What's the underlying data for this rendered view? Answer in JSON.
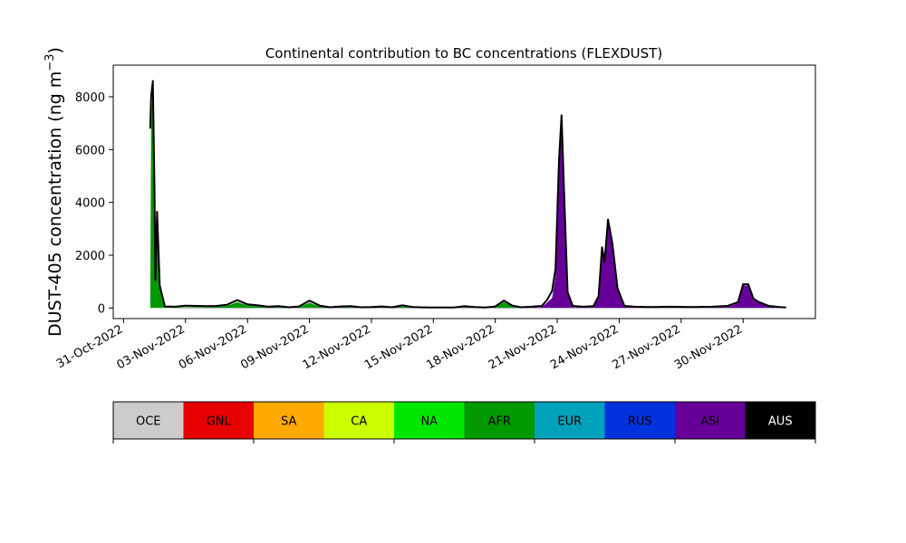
{
  "chart_data": {
    "type": "area",
    "title": "Continental contribution to BC concentrations (FLEXDUST)",
    "ylabel_main": "DUST-405 concentration (ng m",
    "ylabel_sup": "−3",
    "ylabel_end": ")",
    "ylim": [
      -400,
      9200
    ],
    "yticks": [
      0,
      2000,
      4000,
      6000,
      8000
    ],
    "xlim": [
      "2022-10-30T12:00",
      "2022-12-03T12:00"
    ],
    "xticks": [
      "31-Oct-2022",
      "03-Nov-2022",
      "06-Nov-2022",
      "09-Nov-2022",
      "12-Nov-2022",
      "15-Nov-2022",
      "18-Nov-2022",
      "21-Nov-2022",
      "24-Nov-2022",
      "27-Nov-2022",
      "30-Nov-2022"
    ],
    "xtick_dates": [
      "2022-10-31",
      "2022-11-03",
      "2022-11-06",
      "2022-11-09",
      "2022-11-12",
      "2022-11-15",
      "2022-11-18",
      "2022-11-21",
      "2022-11-24",
      "2022-11-27",
      "2022-11-30"
    ],
    "grid": false,
    "series": [
      {
        "name": "AFR",
        "color": "#009900",
        "points": [
          [
            "2022-11-01T07:00",
            0
          ],
          [
            "2022-11-01T08:00",
            6900
          ],
          [
            "2022-11-01T10:00",
            8500
          ],
          [
            "2022-11-01T12:00",
            4200
          ],
          [
            "2022-11-01T13:00",
            1050
          ],
          [
            "2022-11-01T15:00",
            3600
          ],
          [
            "2022-11-01T18:00",
            800
          ],
          [
            "2022-11-02T00:00",
            40
          ],
          [
            "2022-11-02T12:00",
            25
          ],
          [
            "2022-11-03T00:00",
            30
          ],
          [
            "2022-11-03T12:00",
            40
          ],
          [
            "2022-11-04T00:00",
            30
          ],
          [
            "2022-11-04T12:00",
            60
          ],
          [
            "2022-11-05T00:00",
            80
          ],
          [
            "2022-11-05T12:00",
            220
          ],
          [
            "2022-11-06T00:00",
            100
          ],
          [
            "2022-11-06T12:00",
            70
          ],
          [
            "2022-11-07T00:00",
            30
          ],
          [
            "2022-11-07T12:00",
            40
          ],
          [
            "2022-11-08T00:00",
            20
          ],
          [
            "2022-11-08T12:00",
            30
          ],
          [
            "2022-11-09T00:00",
            200
          ],
          [
            "2022-11-09T12:00",
            60
          ],
          [
            "2022-11-10T00:00",
            20
          ],
          [
            "2022-11-10T12:00",
            30
          ],
          [
            "2022-11-11T00:00",
            40
          ],
          [
            "2022-11-11T12:00",
            15
          ],
          [
            "2022-11-12T00:00",
            20
          ],
          [
            "2022-11-12T12:00",
            30
          ],
          [
            "2022-11-13T00:00",
            15
          ],
          [
            "2022-11-13T12:00",
            60
          ],
          [
            "2022-11-14T00:00",
            20
          ],
          [
            "2022-11-14T12:00",
            15
          ],
          [
            "2022-11-15T00:00",
            10
          ],
          [
            "2022-11-15T12:00",
            10
          ],
          [
            "2022-11-16T00:00",
            10
          ],
          [
            "2022-11-16T12:00",
            40
          ],
          [
            "2022-11-17T00:00",
            20
          ],
          [
            "2022-11-17T12:00",
            10
          ],
          [
            "2022-11-18T00:00",
            40
          ],
          [
            "2022-11-18T10:00",
            220
          ],
          [
            "2022-11-18T20:00",
            60
          ],
          [
            "2022-11-19T06:00",
            20
          ],
          [
            "2022-11-19T18:00",
            30
          ],
          [
            "2022-11-20T06:00",
            40
          ],
          [
            "2022-11-20T18:00",
            80
          ],
          [
            "2022-11-21T12:00",
            30
          ],
          [
            "2022-11-22T00:00",
            20
          ],
          [
            "2022-11-22T12:00",
            30
          ],
          [
            "2022-11-23T00:00",
            15
          ],
          [
            "2022-11-23T12:00",
            20
          ],
          [
            "2022-11-24T00:00",
            10
          ],
          [
            "2022-11-24T12:00",
            15
          ],
          [
            "2022-11-25T00:00",
            10
          ],
          [
            "2022-11-25T12:00",
            20
          ],
          [
            "2022-11-26T00:00",
            10
          ],
          [
            "2022-11-26T12:00",
            30
          ],
          [
            "2022-11-27T00:00",
            20
          ],
          [
            "2022-11-27T12:00",
            20
          ],
          [
            "2022-11-28T00:00",
            10
          ],
          [
            "2022-11-28T12:00",
            15
          ],
          [
            "2022-11-29T00:00",
            40
          ],
          [
            "2022-11-29T12:00",
            60
          ],
          [
            "2022-11-30T00:00",
            30
          ],
          [
            "2022-11-30T12:00",
            20
          ],
          [
            "2022-12-01T00:00",
            15
          ],
          [
            "2022-12-01T12:00",
            10
          ],
          [
            "2022-12-02T00:00",
            5
          ],
          [
            "2022-12-02T02:00",
            0
          ]
        ]
      },
      {
        "name": "ASI",
        "color": "#660099",
        "points": [
          [
            "2022-11-01T07:00",
            0
          ],
          [
            "2022-11-02T00:00",
            0
          ],
          [
            "2022-11-03T00:00",
            10
          ],
          [
            "2022-11-05T00:00",
            10
          ],
          [
            "2022-11-17T00:00",
            10
          ],
          [
            "2022-11-19T12:00",
            10
          ],
          [
            "2022-11-20T06:00",
            40
          ],
          [
            "2022-11-20T12:00",
            200
          ],
          [
            "2022-11-20T18:00",
            380
          ],
          [
            "2022-11-20T22:00",
            1200
          ],
          [
            "2022-11-21T02:00",
            5400
          ],
          [
            "2022-11-21T05:00",
            7200
          ],
          [
            "2022-11-21T08:00",
            4200
          ],
          [
            "2022-11-21T12:00",
            500
          ],
          [
            "2022-11-21T18:00",
            40
          ],
          [
            "2022-11-22T06:00",
            20
          ],
          [
            "2022-11-22T18:00",
            40
          ],
          [
            "2022-11-23T00:00",
            400
          ],
          [
            "2022-11-23T04:00",
            2200
          ],
          [
            "2022-11-23T07:00",
            1700
          ],
          [
            "2022-11-23T11:00",
            3300
          ],
          [
            "2022-11-23T16:00",
            2400
          ],
          [
            "2022-11-23T22:00",
            700
          ],
          [
            "2022-11-24T06:00",
            60
          ],
          [
            "2022-11-24T18:00",
            30
          ],
          [
            "2022-11-25T12:00",
            20
          ],
          [
            "2022-11-26T12:00",
            20
          ],
          [
            "2022-11-27T12:00",
            20
          ],
          [
            "2022-11-28T12:00",
            30
          ],
          [
            "2022-11-29T06:00",
            40
          ],
          [
            "2022-11-29T12:00",
            100
          ],
          [
            "2022-11-29T18:00",
            180
          ],
          [
            "2022-11-30T00:00",
            850
          ],
          [
            "2022-11-30T06:00",
            850
          ],
          [
            "2022-11-30T12:00",
            300
          ],
          [
            "2022-11-30T18:00",
            200
          ],
          [
            "2022-12-01T06:00",
            60
          ],
          [
            "2022-12-01T18:00",
            30
          ],
          [
            "2022-12-02T02:00",
            0
          ]
        ]
      }
    ],
    "total_curve": [
      [
        "2022-11-01T07:00",
        6800
      ],
      [
        "2022-11-01T08:00",
        8000
      ],
      [
        "2022-11-01T10:00",
        8600
      ],
      [
        "2022-11-01T12:00",
        4300
      ],
      [
        "2022-11-01T13:00",
        1050
      ],
      [
        "2022-11-01T15:00",
        3650
      ],
      [
        "2022-11-01T18:00",
        850
      ],
      [
        "2022-11-02T00:00",
        60
      ],
      [
        "2022-11-02T12:00",
        50
      ],
      [
        "2022-11-03T00:00",
        90
      ],
      [
        "2022-11-03T12:00",
        80
      ],
      [
        "2022-11-04T00:00",
        70
      ],
      [
        "2022-11-04T12:00",
        80
      ],
      [
        "2022-11-05T00:00",
        120
      ],
      [
        "2022-11-05T12:00",
        300
      ],
      [
        "2022-11-06T00:00",
        140
      ],
      [
        "2022-11-06T12:00",
        100
      ],
      [
        "2022-11-07T00:00",
        50
      ],
      [
        "2022-11-07T12:00",
        70
      ],
      [
        "2022-11-08T00:00",
        30
      ],
      [
        "2022-11-08T12:00",
        60
      ],
      [
        "2022-11-09T00:00",
        280
      ],
      [
        "2022-11-09T12:00",
        90
      ],
      [
        "2022-11-10T00:00",
        30
      ],
      [
        "2022-11-10T12:00",
        60
      ],
      [
        "2022-11-11T00:00",
        70
      ],
      [
        "2022-11-11T12:00",
        30
      ],
      [
        "2022-11-12T00:00",
        40
      ],
      [
        "2022-11-12T12:00",
        60
      ],
      [
        "2022-11-13T00:00",
        30
      ],
      [
        "2022-11-13T12:00",
        100
      ],
      [
        "2022-11-14T00:00",
        40
      ],
      [
        "2022-11-14T12:00",
        25
      ],
      [
        "2022-11-15T00:00",
        20
      ],
      [
        "2022-11-15T12:00",
        20
      ],
      [
        "2022-11-16T00:00",
        20
      ],
      [
        "2022-11-16T12:00",
        70
      ],
      [
        "2022-11-17T00:00",
        40
      ],
      [
        "2022-11-17T12:00",
        20
      ],
      [
        "2022-11-18T00:00",
        60
      ],
      [
        "2022-11-18T10:00",
        280
      ],
      [
        "2022-11-18T20:00",
        90
      ],
      [
        "2022-11-19T06:00",
        30
      ],
      [
        "2022-11-19T18:00",
        50
      ],
      [
        "2022-11-20T06:00",
        80
      ],
      [
        "2022-11-20T12:00",
        300
      ],
      [
        "2022-11-20T18:00",
        650
      ],
      [
        "2022-11-20T22:00",
        1500
      ],
      [
        "2022-11-21T02:00",
        5600
      ],
      [
        "2022-11-21T05:00",
        7300
      ],
      [
        "2022-11-21T08:00",
        4300
      ],
      [
        "2022-11-21T12:00",
        600
      ],
      [
        "2022-11-21T18:00",
        80
      ],
      [
        "2022-11-22T06:00",
        50
      ],
      [
        "2022-11-22T18:00",
        70
      ],
      [
        "2022-11-23T00:00",
        450
      ],
      [
        "2022-11-23T04:00",
        2300
      ],
      [
        "2022-11-23T07:00",
        1750
      ],
      [
        "2022-11-23T11:00",
        3350
      ],
      [
        "2022-11-23T16:00",
        2450
      ],
      [
        "2022-11-23T22:00",
        750
      ],
      [
        "2022-11-24T06:00",
        80
      ],
      [
        "2022-11-24T18:00",
        50
      ],
      [
        "2022-11-25T12:00",
        40
      ],
      [
        "2022-11-26T12:00",
        50
      ],
      [
        "2022-11-27T12:00",
        40
      ],
      [
        "2022-11-28T12:00",
        50
      ],
      [
        "2022-11-29T06:00",
        80
      ],
      [
        "2022-11-29T12:00",
        150
      ],
      [
        "2022-11-29T18:00",
        220
      ],
      [
        "2022-11-30T00:00",
        900
      ],
      [
        "2022-11-30T06:00",
        900
      ],
      [
        "2022-11-30T12:00",
        350
      ],
      [
        "2022-11-30T18:00",
        230
      ],
      [
        "2022-12-01T06:00",
        80
      ],
      [
        "2022-12-01T18:00",
        40
      ],
      [
        "2022-12-02T02:00",
        20
      ]
    ],
    "legend_placement": "bottom colorbar",
    "legend": [
      {
        "name": "OCE",
        "color": "#cccccc",
        "text_color": "#000000"
      },
      {
        "name": "GNL",
        "color": "#e60000",
        "text_color": "#000000"
      },
      {
        "name": "SA",
        "color": "#ffaa00",
        "text_color": "#000000"
      },
      {
        "name": "CA",
        "color": "#ccff00",
        "text_color": "#000000"
      },
      {
        "name": "NA",
        "color": "#00e600",
        "text_color": "#000000"
      },
      {
        "name": "AFR",
        "color": "#009900",
        "text_color": "#000000"
      },
      {
        "name": "EUR",
        "color": "#00a2bb",
        "text_color": "#000000"
      },
      {
        "name": "RUS",
        "color": "#0033dd",
        "text_color": "#000000"
      },
      {
        "name": "ASI",
        "color": "#660099",
        "text_color": "#000000"
      },
      {
        "name": "AUS",
        "color": "#000000",
        "text_color": "#ffffff"
      }
    ]
  }
}
